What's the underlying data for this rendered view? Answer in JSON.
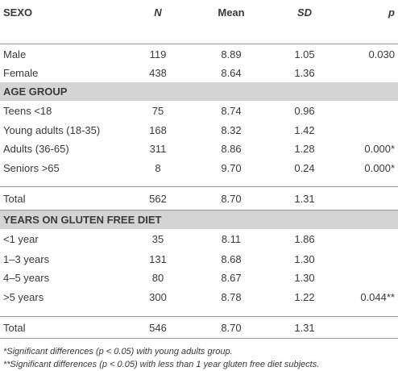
{
  "table": {
    "header": [
      "SEXO",
      "N",
      "Mean",
      "SD",
      "p"
    ],
    "sections": [
      "AGE GROUP",
      "YEARS ON GLUTEN FREE DIET"
    ],
    "rows": [
      [
        "Male",
        "119",
        "8.89",
        "1.05",
        "0.030"
      ],
      [
        "Female",
        "438",
        "8.64",
        "1.36"
      ],
      [
        "Teens <18",
        "75",
        "8.74",
        "0.96"
      ],
      [
        "Young adults (18-35)",
        "168",
        "8.32",
        "1.42"
      ],
      [
        "Adults (36-65)",
        "311",
        "8.86",
        "1.28",
        "0.000*"
      ],
      [
        "Seniors >65",
        "8",
        "9.70",
        "0.24",
        "0.000*"
      ],
      [
        "Total",
        "562",
        "8.70",
        "1.31"
      ],
      [
        "<1 year",
        "35",
        "8.11",
        "1.86"
      ],
      [
        "1–3 years",
        "131",
        "8.68",
        "1.30"
      ],
      [
        "4–5 years",
        "80",
        "8.67",
        "1.30"
      ],
      [
        ">5 years",
        "300",
        "8.78",
        "1.22",
        "0.044**"
      ],
      [
        "Total",
        "546",
        "8.70",
        "1.31"
      ]
    ],
    "footnotes": [
      "*Significant differences (p < 0.05) with young adults group.",
      "**Significant differences (p < 0.05) with less than 1 year gluten free diet subjects."
    ]
  }
}
